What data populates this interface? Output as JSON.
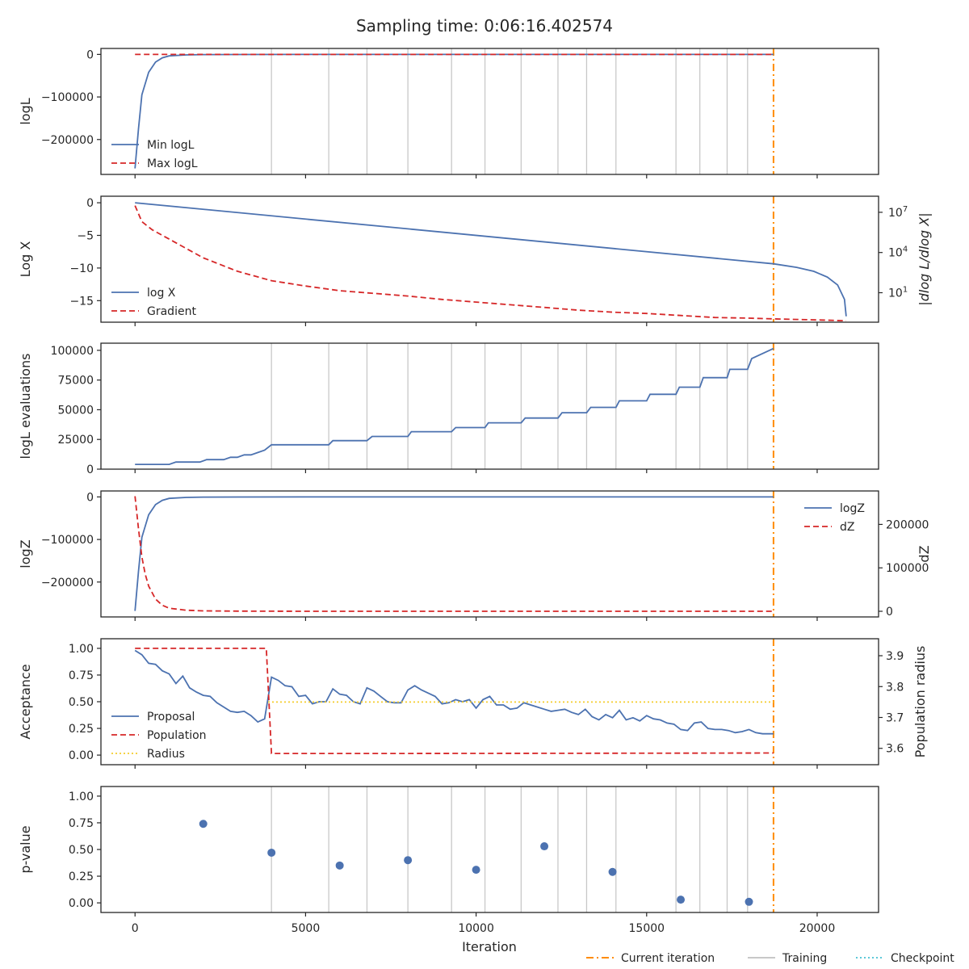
{
  "figure": {
    "title": "Sampling time: 0:06:16.402574",
    "xlabel": "Iteration",
    "x_ticks": [
      "0",
      "5000",
      "10000",
      "15000",
      "20000"
    ],
    "bottom_legend": [
      {
        "label": "Current iteration",
        "color": "#ff8c00",
        "style": "dashdot"
      },
      {
        "label": "Training",
        "color": "#c8c8c8",
        "style": "solid"
      },
      {
        "label": "Checkpoint",
        "color": "#5bc8d8",
        "style": "dotted"
      }
    ]
  },
  "colors": {
    "blue": "#4c72b0",
    "red": "#d62728",
    "yellow": "#f4cc2c",
    "orange": "#ff8c00",
    "training": "#c8c8c8"
  },
  "chart_data": {
    "x_range": [
      -1000,
      21800
    ],
    "current_iteration": 18720,
    "training_iterations": [
      4000,
      5680,
      6800,
      8000,
      9280,
      10260,
      11320,
      12400,
      13240,
      14100,
      15860,
      16560,
      17360,
      17960
    ],
    "panels": [
      {
        "type": "line",
        "ylabel": "logL",
        "y_range": [
          -282000,
          14000
        ],
        "y_ticks": [
          {
            "v": 0,
            "t": "0"
          },
          {
            "v": -100000,
            "t": "−100000"
          },
          {
            "v": -200000,
            "t": "−200000"
          }
        ],
        "show_training": true,
        "series": [
          {
            "name": "Min logL",
            "color": "#4c72b0",
            "style": "solid",
            "x": [
              0,
              100,
              200,
              400,
              600,
              800,
              1000,
              1500,
              2000,
              3000,
              5000,
              10000,
              15000,
              18720
            ],
            "y": [
              -268000,
              -175000,
              -95000,
              -42000,
              -18000,
              -8000,
              -3500,
              -1200,
              -500,
              -150,
              -50,
              -20,
              -10,
              -5
            ]
          },
          {
            "name": "Max logL",
            "color": "#d62728",
            "style": "dashed",
            "x": [
              0,
              18720
            ],
            "y": [
              -100,
              -100
            ]
          }
        ],
        "legend": "lower left"
      },
      {
        "type": "line",
        "ylabel": "Log X",
        "y_range": [
          -18.3,
          1.0
        ],
        "y_ticks": [
          {
            "v": 0,
            "t": "0"
          },
          {
            "v": -5,
            "t": "−5"
          },
          {
            "v": -10,
            "t": "−10"
          },
          {
            "v": -15,
            "t": "−15"
          }
        ],
        "y2label": "|dlog L/dlog X|",
        "y2_log": true,
        "y2_range": [
          -1.2,
          8.2
        ],
        "y2_ticks": [
          {
            "e": 7,
            "t": "10^7"
          },
          {
            "e": 4,
            "t": "10^4"
          },
          {
            "e": 1,
            "t": "10^1"
          }
        ],
        "show_training": false,
        "series": [
          {
            "name": "log X",
            "color": "#4c72b0",
            "style": "solid",
            "x": [
              0,
              18720,
              19400,
              19900,
              20300,
              20600,
              20800,
              20850
            ],
            "y": [
              0,
              -9.36,
              -9.9,
              -10.5,
              -11.4,
              -12.6,
              -14.8,
              -17.4
            ]
          },
          {
            "name": "Gradient",
            "color": "#d62728",
            "style": "dashed",
            "axis": "right",
            "x": [
              0,
              200,
              500,
              1000,
              1500,
              2000,
              3000,
              4000,
              5000,
              6000,
              7000,
              8000,
              9000,
              10000,
              11000,
              12000,
              13000,
              14000,
              15000,
              16000,
              17000,
              18000,
              18720,
              19500,
              20300,
              20850
            ],
            "y": [
              7.5,
              6.3,
              5.7,
              5.0,
              4.3,
              3.6,
              2.6,
              1.9,
              1.5,
              1.15,
              0.95,
              0.75,
              0.5,
              0.3,
              0.1,
              -0.1,
              -0.3,
              -0.45,
              -0.55,
              -0.7,
              -0.85,
              -0.9,
              -0.95,
              -1.0,
              -1.05,
              -1.1
            ]
          }
        ],
        "legend": "lower left"
      },
      {
        "type": "line",
        "ylabel": "logL evaluations",
        "y_range": [
          0,
          106000
        ],
        "y_ticks": [
          {
            "v": 0,
            "t": "0"
          },
          {
            "v": 25000,
            "t": "25000"
          },
          {
            "v": 50000,
            "t": "50000"
          },
          {
            "v": 75000,
            "t": "75000"
          },
          {
            "v": 100000,
            "t": "100000"
          }
        ],
        "show_training": true,
        "series": [
          {
            "name": "logL evaluations",
            "color": "#4c72b0",
            "style": "solid",
            "x": [
              0,
              1000,
              1200,
              1900,
              2100,
              2600,
              2800,
              3000,
              3200,
              3400,
              3600,
              3800,
              4000,
              5680,
              5800,
              6800,
              6950,
              8000,
              8100,
              9280,
              9400,
              10260,
              10360,
              11320,
              11440,
              12400,
              12520,
              13240,
              13360,
              14100,
              14200,
              15000,
              15100,
              15860,
              15960,
              16560,
              16660,
              17360,
              17440,
              17960,
              18080,
              18720
            ],
            "y": [
              4000,
              4000,
              6000,
              6000,
              8000,
              8000,
              10000,
              10000,
              12000,
              12000,
              14000,
              16000,
              20500,
              20500,
              24000,
              24000,
              27500,
              27500,
              31500,
              31500,
              35000,
              35000,
              39000,
              39000,
              43000,
              43000,
              47500,
              47500,
              52000,
              52000,
              57500,
              57500,
              63000,
              63000,
              69000,
              69000,
              77000,
              77000,
              84000,
              84000,
              93000,
              101500
            ]
          }
        ],
        "legend": "none"
      },
      {
        "type": "line",
        "ylabel": "logZ",
        "y_range": [
          -282000,
          14000
        ],
        "y_ticks": [
          {
            "v": 0,
            "t": "0"
          },
          {
            "v": -100000,
            "t": "−100000"
          },
          {
            "v": -200000,
            "t": "−200000"
          }
        ],
        "y2label": "dZ",
        "y2_log": false,
        "y2_range": [
          -13000,
          277000
        ],
        "y2_ticks": [
          {
            "v": 0,
            "t": "0"
          },
          {
            "v": 100000,
            "t": "100000"
          },
          {
            "v": 200000,
            "t": "200000"
          }
        ],
        "show_training": false,
        "series": [
          {
            "name": "logZ",
            "color": "#4c72b0",
            "style": "solid",
            "x": [
              0,
              100,
              200,
              400,
              600,
              800,
              1000,
              1500,
              2000,
              3000,
              5000,
              10000,
              15000,
              18720
            ],
            "y": [
              -268000,
              -175000,
              -95000,
              -42000,
              -18000,
              -8000,
              -3500,
              -1200,
              -500,
              -150,
              -50,
              -20,
              -10,
              -5
            ]
          },
          {
            "name": "dZ",
            "color": "#d62728",
            "style": "dashed",
            "axis": "right",
            "x": [
              0,
              100,
              200,
              300,
              400,
              600,
              800,
              1000,
              1500,
              2000,
              3000,
              5000,
              10000,
              18720
            ],
            "y": [
              265000,
              190000,
              125000,
              85000,
              58000,
              28000,
              14000,
              7000,
              2500,
              1000,
              300,
              100,
              30,
              10
            ]
          }
        ],
        "legend": "upper right"
      },
      {
        "type": "line",
        "ylabel": "Acceptance",
        "y_range": [
          -0.09,
          1.09
        ],
        "y_ticks": [
          {
            "v": 0,
            "t": "0.00"
          },
          {
            "v": 0.25,
            "t": "0.25"
          },
          {
            "v": 0.5,
            "t": "0.50"
          },
          {
            "v": 0.75,
            "t": "0.75"
          },
          {
            "v": 1.0,
            "t": "1.00"
          }
        ],
        "y2label": "Population radius",
        "y2_log": false,
        "y2_range": [
          3.547,
          3.955
        ],
        "y2_ticks": [
          {
            "v": 3.6,
            "t": "3.6"
          },
          {
            "v": 3.7,
            "t": "3.7"
          },
          {
            "v": 3.8,
            "t": "3.8"
          },
          {
            "v": 3.9,
            "t": "3.9"
          }
        ],
        "show_training": false,
        "series": [
          {
            "name": "Proposal",
            "color": "#4c72b0",
            "style": "solid",
            "x": [
              0,
              200,
              400,
              600,
              800,
              1000,
              1200,
              1400,
              1600,
              1800,
              2000,
              2200,
              2400,
              2600,
              2800,
              3000,
              3200,
              3400,
              3600,
              3800,
              4000,
              4200,
              4400,
              4600,
              4800,
              5000,
              5200,
              5400,
              5600,
              5800,
              6000,
              6200,
              6400,
              6600,
              6800,
              7000,
              7200,
              7400,
              7600,
              7800,
              8000,
              8200,
              8400,
              8600,
              8800,
              9000,
              9200,
              9400,
              9600,
              9800,
              10000,
              10200,
              10400,
              10600,
              10800,
              11000,
              11200,
              11400,
              11600,
              11800,
              12000,
              12200,
              12400,
              12600,
              12800,
              13000,
              13200,
              13400,
              13600,
              13800,
              14000,
              14200,
              14400,
              14600,
              14800,
              15000,
              15200,
              15400,
              15600,
              15800,
              16000,
              16200,
              16400,
              16600,
              16800,
              17000,
              17200,
              17400,
              17600,
              17800,
              18000,
              18200,
              18400,
              18600,
              18720
            ],
            "y": [
              0.98,
              0.94,
              0.86,
              0.85,
              0.79,
              0.76,
              0.67,
              0.74,
              0.63,
              0.59,
              0.56,
              0.55,
              0.49,
              0.45,
              0.41,
              0.4,
              0.41,
              0.37,
              0.31,
              0.34,
              0.73,
              0.7,
              0.65,
              0.64,
              0.55,
              0.56,
              0.48,
              0.5,
              0.5,
              0.62,
              0.57,
              0.56,
              0.5,
              0.48,
              0.63,
              0.6,
              0.55,
              0.5,
              0.49,
              0.49,
              0.61,
              0.65,
              0.61,
              0.58,
              0.55,
              0.48,
              0.49,
              0.52,
              0.5,
              0.52,
              0.44,
              0.52,
              0.55,
              0.47,
              0.47,
              0.43,
              0.44,
              0.49,
              0.47,
              0.45,
              0.43,
              0.41,
              0.42,
              0.43,
              0.4,
              0.38,
              0.43,
              0.36,
              0.33,
              0.38,
              0.35,
              0.42,
              0.33,
              0.35,
              0.32,
              0.37,
              0.34,
              0.33,
              0.3,
              0.29,
              0.24,
              0.23,
              0.3,
              0.31,
              0.25,
              0.24,
              0.24,
              0.23,
              0.21,
              0.22,
              0.24,
              0.21,
              0.2,
              0.2,
              0.2
            ]
          },
          {
            "name": "Population",
            "color": "#d62728",
            "style": "dashed",
            "x": [
              0,
              3850,
              4000,
              8000,
              12000,
              16000,
              18720
            ],
            "y": [
              1.0,
              1.0,
              0.015,
              0.015,
              0.017,
              0.018,
              0.02
            ]
          },
          {
            "name": "Radius",
            "color": "#f4cc2c",
            "style": "dotted",
            "axis": "right",
            "x": [
              3900,
              4000,
              18720
            ],
            "y": [
              3.75,
              3.75,
              3.75
            ]
          }
        ],
        "legend": "lower left"
      },
      {
        "type": "scatter",
        "ylabel": "p-value",
        "y_range": [
          -0.09,
          1.09
        ],
        "y_ticks": [
          {
            "v": 0,
            "t": "0.00"
          },
          {
            "v": 0.25,
            "t": "0.25"
          },
          {
            "v": 0.5,
            "t": "0.50"
          },
          {
            "v": 0.75,
            "t": "0.75"
          },
          {
            "v": 1.0,
            "t": "1.00"
          }
        ],
        "show_training": true,
        "series": [
          {
            "name": "p-value",
            "color": "#4c72b0",
            "style": "marker",
            "x": [
              2000,
              4000,
              6000,
              8000,
              10000,
              12000,
              14000,
              16000,
              18000
            ],
            "y": [
              0.74,
              0.47,
              0.35,
              0.4,
              0.31,
              0.53,
              0.29,
              0.03,
              0.01
            ]
          }
        ],
        "legend": "none"
      }
    ]
  }
}
